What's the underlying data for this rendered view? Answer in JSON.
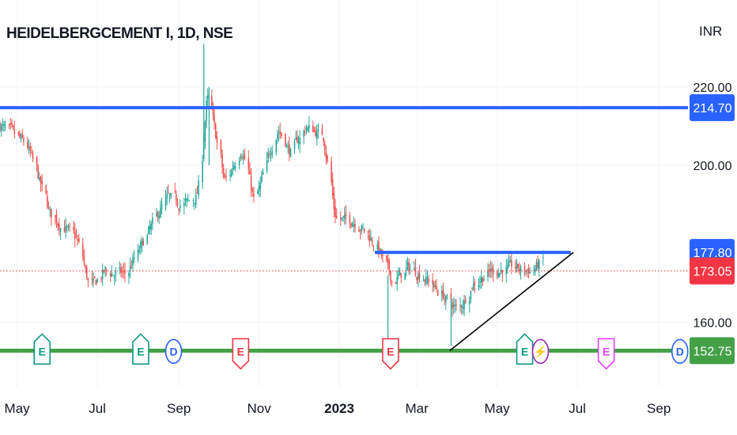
{
  "header": {
    "symbol_title": "HEIDELBERGCEMENT I, 1D, NSE",
    "currency": "INR"
  },
  "colors": {
    "up": "#26a69a",
    "down": "#ef5350",
    "resistance": "#2962ff",
    "support": "#43a047",
    "trendline": "#000000",
    "last_price": "#f23645",
    "earnings_green": "#089981",
    "earnings_red": "#f23645",
    "earnings_magenta": "#e040fb",
    "dividend": "#2962ff",
    "split": "#9c27b0",
    "grid": "#f0f3fa",
    "text": "#131722"
  },
  "chart_data": {
    "type": "candlestick",
    "title": "HEIDELBERGCEMENT I, 1D, NSE",
    "currency": "INR",
    "x_ticks": [
      {
        "label": "May",
        "date": "2022-05-01",
        "bold": false
      },
      {
        "label": "Jul",
        "date": "2022-07-01",
        "bold": false
      },
      {
        "label": "Sep",
        "date": "2022-09-01",
        "bold": false
      },
      {
        "label": "Nov",
        "date": "2022-11-01",
        "bold": false
      },
      {
        "label": "2023",
        "date": "2023-01-01",
        "bold": true
      },
      {
        "label": "Mar",
        "date": "2023-03-01",
        "bold": false
      },
      {
        "label": "May",
        "date": "2023-05-01",
        "bold": false
      },
      {
        "label": "Jul",
        "date": "2023-07-01",
        "bold": false
      },
      {
        "label": "Sep",
        "date": "2023-09-01",
        "bold": false
      }
    ],
    "y_ticks": [
      {
        "label": "220.00",
        "value": 220
      },
      {
        "label": "200.00",
        "value": 200
      },
      {
        "label": "160.00",
        "value": 160
      }
    ],
    "ylim": [
      140,
      232
    ],
    "price_path": [
      [
        "2022-04-18",
        210
      ],
      [
        "2022-05-08",
        205
      ],
      [
        "2022-05-26",
        187
      ],
      [
        "2022-06-15",
        181
      ],
      [
        "2022-06-25",
        168
      ],
      [
        "2022-07-05",
        173
      ],
      [
        "2022-07-22",
        172
      ],
      [
        "2022-08-08",
        183
      ],
      [
        "2022-08-22",
        192
      ],
      [
        "2022-09-05",
        190
      ],
      [
        "2022-09-15",
        193
      ],
      [
        "2022-09-22",
        219
      ],
      [
        "2022-10-05",
        195
      ],
      [
        "2022-10-18",
        205
      ],
      [
        "2022-10-28",
        190
      ],
      [
        "2022-11-14",
        210
      ],
      [
        "2022-11-24",
        203
      ],
      [
        "2022-12-06",
        210
      ],
      [
        "2022-12-20",
        207
      ],
      [
        "2022-12-28",
        186
      ],
      [
        "2023-01-12",
        186
      ],
      [
        "2023-01-28",
        180
      ],
      [
        "2023-02-10",
        170
      ],
      [
        "2023-02-22",
        174
      ],
      [
        "2023-03-08",
        171
      ],
      [
        "2023-03-22",
        166
      ],
      [
        "2023-04-01",
        163
      ],
      [
        "2023-04-12",
        170
      ],
      [
        "2023-04-26",
        173
      ],
      [
        "2023-05-12",
        174
      ],
      [
        "2023-05-26",
        173
      ],
      [
        "2023-06-05",
        176
      ]
    ],
    "spikes": [
      {
        "date": "2022-09-20",
        "high": 231,
        "low": 202
      },
      {
        "date": "2022-09-24",
        "high": 220,
        "low": 200
      },
      {
        "date": "2023-02-07",
        "high": 172,
        "low": 155
      },
      {
        "date": "2023-03-27",
        "high": 166,
        "low": 154
      }
    ],
    "horizontal_lines": [
      {
        "name": "resistance-214",
        "value": 214.7,
        "label": "214.70",
        "color": "#2962ff",
        "from": "2022-04-18",
        "to": "end"
      },
      {
        "name": "resistance-177",
        "value": 177.8,
        "label": "177.80",
        "color": "#2962ff",
        "from": "2023-01-28",
        "to": "2023-06-26"
      },
      {
        "name": "support-152",
        "value": 152.75,
        "label": "152.75",
        "color": "#43a047",
        "from": "2022-04-18",
        "to": "end"
      }
    ],
    "last_price": {
      "value": 173.05,
      "label": "173.05"
    },
    "trendline": {
      "from": [
        "2023-03-26",
        152.75
      ],
      "to": [
        "2023-06-28",
        177.8
      ]
    },
    "events": [
      {
        "date": "2022-05-20",
        "letter": "E",
        "kind": "earnings",
        "color": "#089981"
      },
      {
        "date": "2022-08-03",
        "letter": "E",
        "kind": "earnings",
        "color": "#089981"
      },
      {
        "date": "2022-08-28",
        "letter": "D",
        "kind": "dividend",
        "color": "#2962ff"
      },
      {
        "date": "2022-10-18",
        "letter": "E",
        "kind": "earnings",
        "color": "#f23645"
      },
      {
        "date": "2023-02-09",
        "letter": "E",
        "kind": "earnings",
        "color": "#f23645"
      },
      {
        "date": "2023-05-22",
        "letter": "E",
        "kind": "earnings",
        "color": "#089981"
      },
      {
        "date": "2023-06-03",
        "letter": "⚡",
        "kind": "split",
        "color": "#9c27b0"
      },
      {
        "date": "2023-07-23",
        "letter": "E",
        "kind": "earnings",
        "color": "#e040fb"
      },
      {
        "date": "2023-09-17",
        "letter": "D",
        "kind": "dividend",
        "color": "#2962ff"
      }
    ]
  }
}
